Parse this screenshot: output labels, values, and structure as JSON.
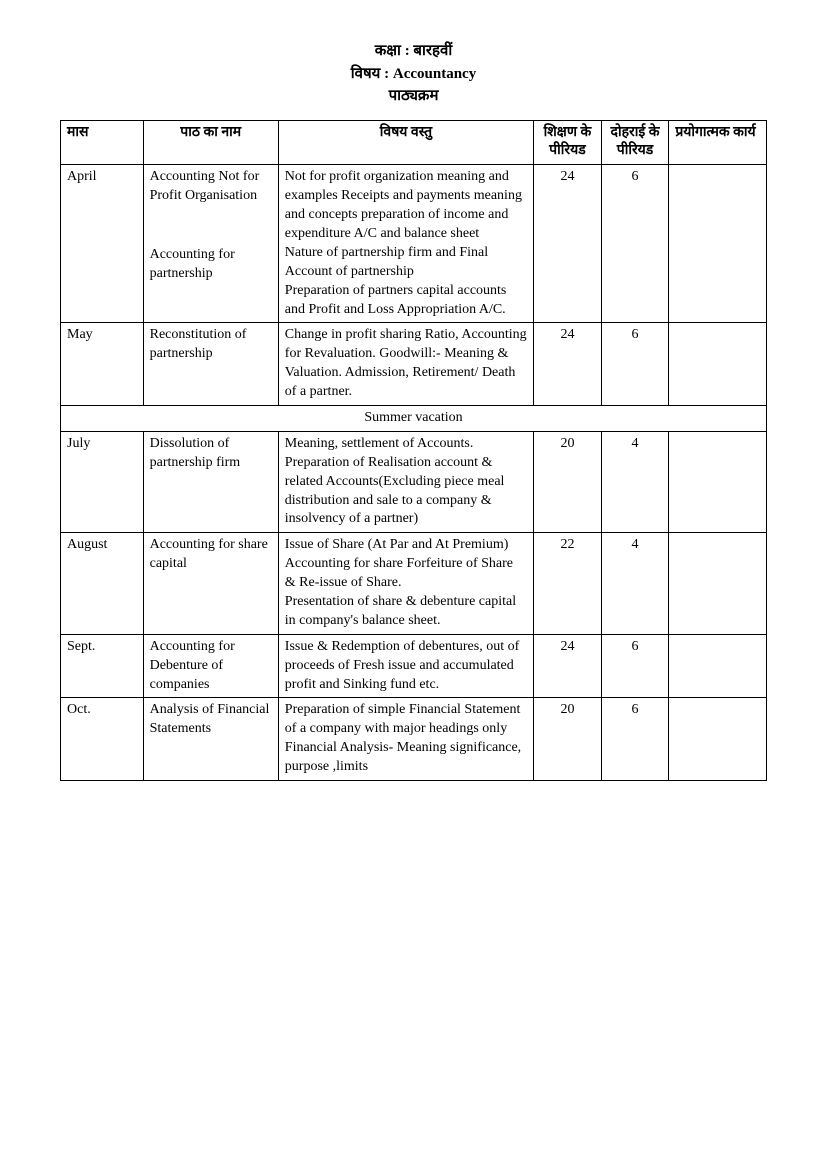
{
  "header": {
    "line1": "कक्षा : बारहवीं",
    "line2": "विषय : Accountancy",
    "line3": "पाठ्यक्रम"
  },
  "columns": {
    "month": "मास",
    "topic": "पाठ का नाम",
    "content": "विषय वस्तु",
    "teaching": "शिक्षण के पीरियड",
    "revision": "दोहराई के पीरियड",
    "practical": "प्रयोगात्मक कार्य"
  },
  "rows": [
    {
      "month": "April",
      "topic1": "Accounting Not for Profit Organisation",
      "topic2": "Accounting for partnership",
      "content": "Not for profit organization meaning and examples Receipts and payments meaning and concepts preparation of income and expenditure A/C and balance sheet\nNature of partnership firm and Final Account of partnership\nPreparation of partners capital accounts and Profit and Loss Appropriation A/C.",
      "teaching": "24",
      "revision": "6",
      "practical": ""
    },
    {
      "month": "May",
      "topic": "Reconstitution of partnership",
      "content": "Change in profit sharing Ratio, Accounting for Revaluation. Goodwill:- Meaning & Valuation. Admission, Retirement/ Death of a partner.",
      "teaching": "24",
      "revision": "6",
      "practical": ""
    },
    {
      "vacation": "Summer vacation"
    },
    {
      "month": "July",
      "topic": "Dissolution of partnership firm",
      "content": "Meaning, settlement of Accounts.\nPreparation of Realisation account & related Accounts(Excluding piece meal distribution and sale to a company & insolvency of a partner)",
      "teaching": "20",
      "revision": "4",
      "practical": ""
    },
    {
      "month": "August",
      "topic": "Accounting for share capital",
      "content": "Issue of Share (At Par and At Premium)\nAccounting for share Forfeiture of Share & Re-issue of Share.\nPresentation of share & debenture capital in company's balance sheet.",
      "teaching": "22",
      "revision": "4",
      "practical": ""
    },
    {
      "month": "Sept.",
      "topic": "Accounting for Debenture of companies",
      "content": "Issue & Redemption of debentures, out of proceeds of Fresh issue and accumulated profit and Sinking fund etc.",
      "teaching": "24",
      "revision": "6",
      "practical": ""
    },
    {
      "month": "Oct.",
      "topic": "Analysis of Financial Statements",
      "content": "Preparation of simple Financial Statement of a company with major headings only\nFinancial Analysis- Meaning significance, purpose ,limits",
      "teaching": "20",
      "revision": "6",
      "practical": ""
    }
  ]
}
